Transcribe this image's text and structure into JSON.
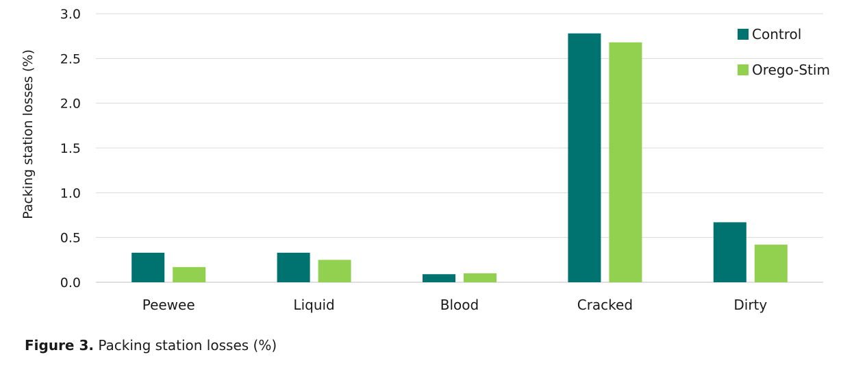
{
  "chart_data": {
    "type": "bar",
    "categories": [
      "Peewee",
      "Liquid",
      "Blood",
      "Cracked",
      "Dirty"
    ],
    "series": [
      {
        "name": "Control",
        "values": [
          0.33,
          0.33,
          0.09,
          2.78,
          0.67
        ],
        "color": "#007370"
      },
      {
        "name": "Orego-Stim",
        "values": [
          0.17,
          0.25,
          0.1,
          2.68,
          0.42
        ],
        "color": "#92d050"
      }
    ],
    "ylabel": "Packing station losses (%)",
    "ylim": [
      0,
      3.0
    ],
    "yticks": [
      "0.0",
      "0.5",
      "1.0",
      "1.5",
      "2.0",
      "2.5",
      "3.0"
    ],
    "grid": true,
    "legend_position": "top-right"
  },
  "caption": {
    "prefix": "Figure 3.",
    "text": " Packing station losses (%)"
  }
}
